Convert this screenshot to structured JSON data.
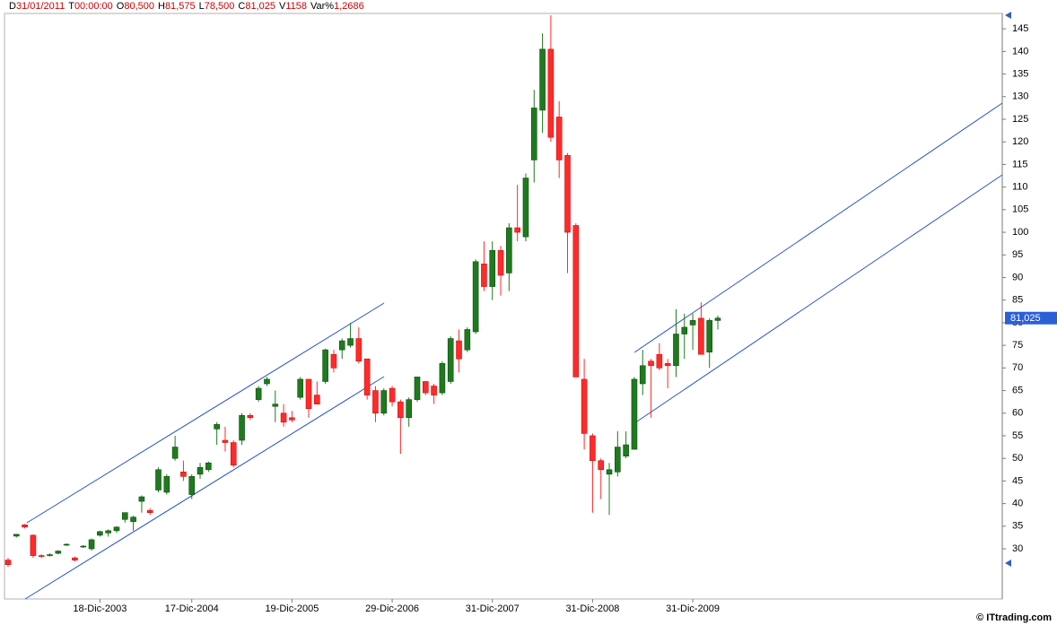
{
  "chart_data": {
    "type": "candlestick",
    "header": [
      {
        "label": "D",
        "value": "31/01/2011"
      },
      {
        "label": "T",
        "value": "00:00:00"
      },
      {
        "label": "O",
        "value": "80,500"
      },
      {
        "label": "H",
        "value": "81,575"
      },
      {
        "label": "L",
        "value": "78,500"
      },
      {
        "label": "C",
        "value": "81,025"
      },
      {
        "label": "V",
        "value": "1158"
      },
      {
        "label": "Var%",
        "value": "1,2686"
      }
    ],
    "price_label": "81,025",
    "footer": "© ITtrading.com",
    "categories": [
      null,
      null,
      null,
      null,
      null,
      null,
      null,
      null,
      null,
      null,
      null,
      "18-Dic-2003",
      null,
      null,
      null,
      null,
      null,
      null,
      null,
      null,
      null,
      null,
      "17-Dic-2004",
      null,
      null,
      null,
      null,
      null,
      null,
      null,
      null,
      null,
      null,
      null,
      "19-Dic-2005",
      null,
      null,
      null,
      null,
      null,
      null,
      null,
      null,
      null,
      null,
      null,
      "29-Dic-2006",
      null,
      null,
      null,
      null,
      null,
      null,
      null,
      null,
      null,
      null,
      null,
      "31-Dic-2007",
      null,
      null,
      null,
      null,
      null,
      null,
      null,
      null,
      null,
      null,
      null,
      "31-Dic-2008",
      null,
      null,
      null,
      null,
      null,
      null,
      null,
      null,
      null,
      null,
      null,
      "31-Dic-2009",
      null,
      null,
      null
    ],
    "open": [
      27.5,
      32.8,
      35.3,
      33,
      28.5,
      28.5,
      29,
      30.8,
      28,
      30.4,
      30,
      33,
      33.5,
      34,
      36.5,
      36,
      40.5,
      38.5,
      43,
      42.5,
      50,
      47,
      42,
      46.5,
      47.5,
      56.5,
      54,
      53.5,
      54,
      59.5,
      63,
      66.5,
      61.5,
      60,
      59,
      63.5,
      67.5,
      64,
      67,
      73,
      74,
      75,
      76.5,
      72,
      65,
      60,
      65.5,
      62.5,
      59,
      63,
      67,
      66,
      64.5,
      67,
      76,
      74,
      78,
      93,
      88,
      96,
      91,
      101,
      99,
      116,
      127,
      140.5,
      125.5,
      117,
      101.5,
      67.5,
      55,
      49.5,
      46.5,
      47,
      50.5,
      52,
      66.5,
      71.5,
      73,
      71,
      70.5,
      77.5,
      79.5,
      81,
      73.5,
      80.5
    ],
    "high": [
      28,
      33.3,
      35.5,
      33.2,
      28.8,
      29,
      29.7,
      31.2,
      28.3,
      30.8,
      32.3,
      34,
      34.3,
      35,
      38,
      37.3,
      41.8,
      39,
      48,
      46.5,
      55,
      49.5,
      46.5,
      49,
      49.3,
      58,
      57,
      54,
      60,
      60,
      66,
      68,
      65,
      62,
      60.5,
      68,
      67.5,
      67,
      74.3,
      74,
      76.5,
      80,
      79,
      72,
      66,
      65.5,
      66,
      63,
      63.5,
      68,
      67,
      66.5,
      71.5,
      77,
      78.5,
      79,
      94,
      98,
      98,
      97,
      102,
      110.5,
      113,
      131.5,
      144,
      148,
      129,
      117.5,
      102,
      72,
      55.5,
      50,
      49,
      56,
      56,
      68,
      74,
      72,
      75.5,
      72,
      83,
      82,
      82,
      84.5,
      81,
      81.575
    ],
    "low": [
      26,
      32.5,
      34.5,
      28,
      28,
      28.3,
      28.8,
      30.6,
      27.2,
      30.2,
      29.6,
      32.7,
      32.7,
      33.5,
      35.8,
      34,
      38,
      37.5,
      42.5,
      42,
      49.5,
      45,
      41,
      45.5,
      47,
      53,
      51.5,
      48,
      53,
      58.5,
      62.5,
      66,
      58,
      57,
      58,
      63,
      59,
      62,
      66.5,
      69,
      72,
      74.5,
      71,
      63,
      58,
      59.5,
      61.5,
      51,
      57,
      62.5,
      64,
      62,
      64,
      66.5,
      69,
      73.5,
      77.5,
      87,
      85,
      86,
      87,
      98,
      98,
      111,
      122,
      120,
      112,
      91,
      68,
      52,
      38,
      41,
      37.5,
      46,
      50,
      52,
      64,
      59,
      69.5,
      65.5,
      68,
      72,
      74,
      73,
      70,
      78.5
    ],
    "close": [
      26.5,
      33.2,
      34.8,
      28.5,
      28.3,
      28.7,
      29.5,
      31,
      27.5,
      30.6,
      32,
      33.8,
      34,
      34.8,
      38,
      37,
      41.5,
      38,
      47.5,
      46,
      52.5,
      46,
      46,
      48,
      49,
      57.5,
      53.5,
      48.5,
      59.5,
      59,
      65.5,
      67.5,
      62,
      58,
      58.5,
      67.5,
      61,
      62,
      74,
      70,
      76,
      76.5,
      71.5,
      64,
      60,
      65,
      62.5,
      59,
      63,
      68,
      64.5,
      64,
      71,
      76.5,
      72,
      78.5,
      93.5,
      88,
      96,
      90.5,
      101,
      100,
      112,
      127.5,
      140.5,
      121,
      116,
      100,
      68,
      55.5,
      49.5,
      47.5,
      47.5,
      52.5,
      53,
      67.5,
      70.5,
      70.5,
      70,
      70.5,
      77.5,
      79,
      80.5,
      73,
      80.5,
      81.025
    ],
    "up_color": "#1f7a1f",
    "down_color": "#ff2a2a",
    "ylim": [
      18.9,
      148.4
    ],
    "yticks": [
      30,
      35,
      40,
      45,
      50,
      55,
      60,
      65,
      70,
      75,
      80,
      85,
      90,
      95,
      100,
      105,
      110,
      115,
      120,
      125,
      130,
      135,
      140,
      145
    ]
  }
}
